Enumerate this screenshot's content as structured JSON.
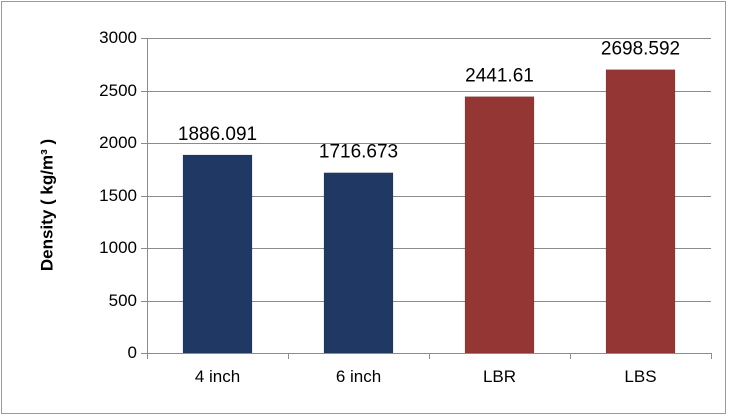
{
  "chart_data": {
    "type": "bar",
    "categories": [
      "4 inch",
      "6 inch",
      "LBR",
      "LBS"
    ],
    "values": [
      1886.091,
      1716.673,
      2441.61,
      2698.592
    ],
    "data_labels": [
      "1886.091",
      "1716.673",
      "2441.61",
      "2698.592"
    ],
    "bar_colors": [
      "#1f3864",
      "#1f3864",
      "#943634",
      "#943634"
    ],
    "ylabel": "Density ( kg/m³ )",
    "xlabel": "",
    "ylim": [
      0,
      3000
    ],
    "yticks": [
      0,
      500,
      1000,
      1500,
      2000,
      2500,
      3000
    ],
    "ytick_labels": [
      "0",
      "500",
      "1000",
      "1500",
      "2000",
      "2500",
      "3000"
    ],
    "grid": true,
    "legend": "none"
  }
}
